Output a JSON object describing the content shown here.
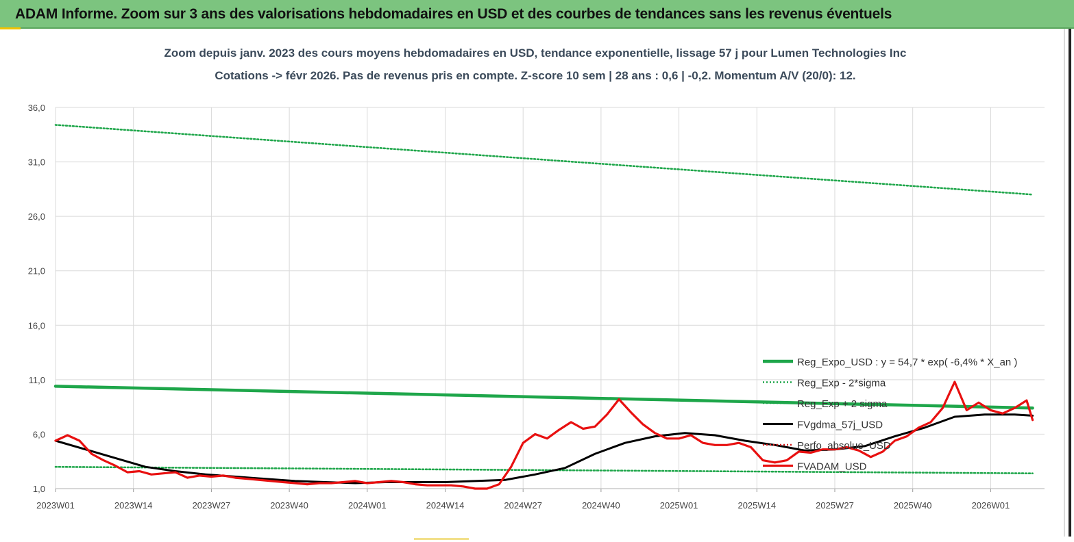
{
  "header": {
    "title": "ADAM Informe. Zoom sur 3 ans des valorisations hebdomadaires en USD et des courbes de tendances sans les revenus éventuels"
  },
  "chart_data": {
    "type": "line",
    "title": "Zoom depuis janv. 2023 des cours moyens hebdomadaires en USD, tendance exponentielle, lissage 57 j pour Lumen Technologies Inc",
    "subtitle": "Cotations -> févr 2026.  Pas de revenus pris en compte. Z-score 10 sem  | 28 ans : 0,6 | -0,2. Momentum A/V (20/0): 12.",
    "xlabel": "",
    "ylabel": "",
    "ylim": [
      1,
      36
    ],
    "y_ticks": [
      "1,0",
      "6,0",
      "11,0",
      "16,0",
      "21,0",
      "26,0",
      "31,0",
      "36,0"
    ],
    "x_ticks": [
      "2023W01",
      "2023W14",
      "2023W27",
      "2023W40",
      "2024W01",
      "2024W14",
      "2024W27",
      "2024W40",
      "2025W01",
      "2025W14",
      "2025W27",
      "2025W40",
      "2026W01"
    ],
    "grid": true,
    "legend_position": "bottom-right",
    "x_week_index_note": "x values are week indices from 2023W01 (0) in the order of the x axis",
    "series": [
      {
        "name": "Reg_Expo_USD : y = 54,7 * exp( -6,4% *  X_an )",
        "color": "#1ea64a",
        "style": "solid-thick",
        "x": [
          0,
          163
        ],
        "values": [
          10.4,
          8.4
        ]
      },
      {
        "name": "Reg_Exp - 2*sigma",
        "color": "#1ea64a",
        "style": "dotted",
        "x": [
          0,
          163
        ],
        "values": [
          3.0,
          2.4
        ]
      },
      {
        "name": "Reg_Exp + 2 sigma",
        "color": "#1ea64a",
        "style": "dotted",
        "x": [
          0,
          163
        ],
        "values": [
          34.4,
          28.0
        ]
      },
      {
        "name": "FVgdma_57j_USD",
        "color": "#000000",
        "style": "solid",
        "x": [
          0,
          5,
          10,
          15,
          20,
          25,
          30,
          35,
          40,
          45,
          50,
          55,
          60,
          65,
          70,
          75,
          80,
          85,
          90,
          95,
          100,
          105,
          110,
          115,
          120,
          125,
          130,
          135,
          140,
          145,
          150,
          155,
          160,
          163
        ],
        "values": [
          5.4,
          4.6,
          3.8,
          3.0,
          2.6,
          2.3,
          2.1,
          1.9,
          1.7,
          1.6,
          1.5,
          1.6,
          1.6,
          1.6,
          1.7,
          1.8,
          2.3,
          2.9,
          4.2,
          5.2,
          5.8,
          6.1,
          5.9,
          5.4,
          5.0,
          4.5,
          4.6,
          4.9,
          5.8,
          6.6,
          7.6,
          7.8,
          7.8,
          7.7
        ]
      },
      {
        "name": "Perfo_absolue_USD",
        "color": "#d62020",
        "style": "dotted",
        "x": [],
        "values": []
      },
      {
        "name": "FVADAM_USD",
        "color": "#e81010",
        "style": "solid-thick",
        "x": [
          0,
          2,
          4,
          6,
          8,
          10,
          12,
          14,
          16,
          18,
          20,
          22,
          24,
          26,
          28,
          30,
          32,
          34,
          36,
          38,
          40,
          42,
          44,
          46,
          48,
          50,
          52,
          54,
          56,
          58,
          60,
          62,
          64,
          66,
          68,
          70,
          72,
          74,
          76,
          78,
          80,
          82,
          84,
          86,
          88,
          90,
          92,
          94,
          96,
          98,
          100,
          102,
          104,
          106,
          108,
          110,
          112,
          114,
          116,
          118,
          120,
          122,
          124,
          126,
          128,
          130,
          132,
          134,
          136,
          138,
          140,
          142,
          144,
          146,
          148,
          150,
          152,
          154,
          156,
          158,
          160,
          162,
          163
        ],
        "values": [
          5.4,
          5.9,
          5.4,
          4.2,
          3.6,
          3.1,
          2.5,
          2.6,
          2.3,
          2.4,
          2.5,
          2.0,
          2.2,
          2.1,
          2.2,
          2.0,
          1.9,
          1.8,
          1.7,
          1.6,
          1.5,
          1.4,
          1.5,
          1.5,
          1.6,
          1.7,
          1.5,
          1.6,
          1.7,
          1.6,
          1.4,
          1.3,
          1.3,
          1.3,
          1.2,
          1.0,
          1.0,
          1.4,
          3.0,
          5.2,
          6.0,
          5.6,
          6.4,
          7.1,
          6.5,
          6.7,
          7.8,
          9.2,
          8.0,
          6.9,
          6.1,
          5.6,
          5.6,
          5.9,
          5.2,
          5.0,
          5.0,
          5.2,
          4.8,
          3.6,
          3.4,
          3.6,
          4.4,
          4.3,
          4.6,
          4.6,
          4.8,
          4.5,
          3.9,
          4.4,
          5.4,
          5.8,
          6.6,
          7.1,
          8.4,
          10.8,
          8.2,
          8.9,
          8.2,
          7.9,
          8.4,
          9.1,
          7.3
        ]
      }
    ]
  }
}
